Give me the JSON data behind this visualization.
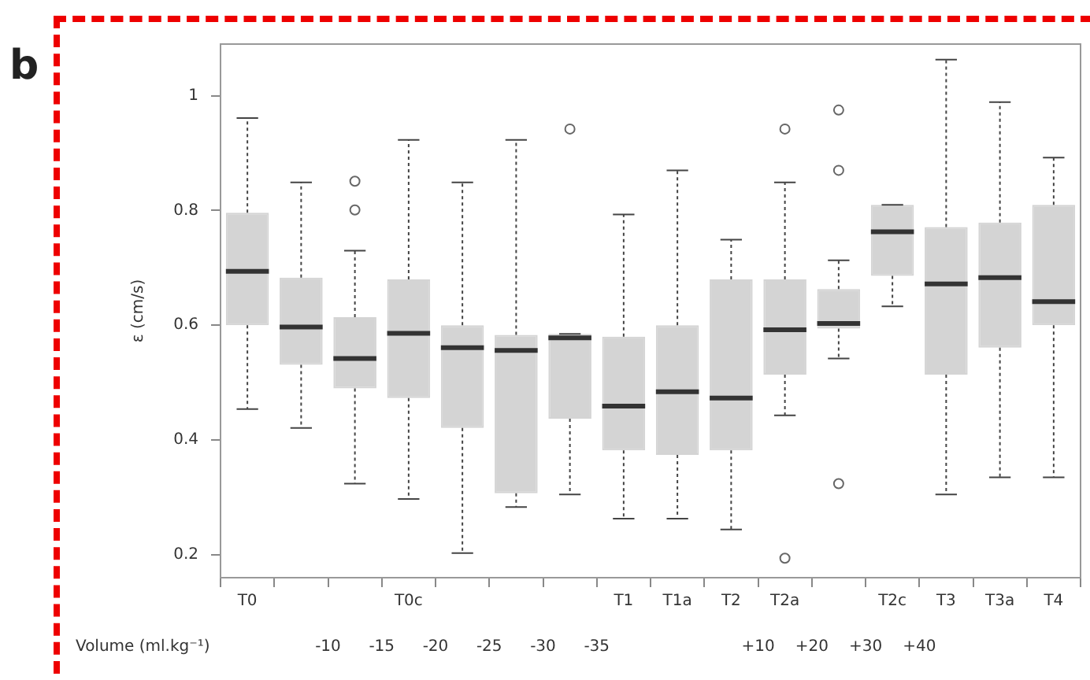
{
  "chart_data": {
    "type": "box",
    "ylabel": "ε (cm/s)",
    "color": "#d4d4d4",
    "categories": [
      "T0",
      null,
      null,
      "T0c",
      null,
      null,
      null,
      "T1",
      "T1a",
      "T2",
      "T2a",
      null,
      "T2c",
      "T3",
      "T3a",
      "T4"
    ],
    "ylim": [
      0.16,
      1.09
    ],
    "yticks": [
      0.2,
      0.4,
      0.6,
      0.8,
      1
    ],
    "grid": false,
    "legend": false,
    "annotations": [
      "b",
      "Volume (ml.kg⁻¹)",
      "-10",
      "-15",
      "-20",
      "-25",
      "-30",
      "-35",
      "+10",
      "+20",
      "+30",
      "+40"
    ],
    "boxes": [
      {
        "low": 0.454,
        "q1": 0.6,
        "median": 0.694,
        "q3": 0.796,
        "high": 0.961
      },
      {
        "low": 0.421,
        "q1": 0.531,
        "median": 0.597,
        "q3": 0.683,
        "high": 0.849
      },
      {
        "low": 0.324,
        "q1": 0.49,
        "median": 0.542,
        "q3": 0.614,
        "high": 0.73,
        "outliers": [
          0.801,
          0.851
        ]
      },
      {
        "low": 0.297,
        "q1": 0.473,
        "median": 0.586,
        "q3": 0.68,
        "high": 0.923
      },
      {
        "low": 0.203,
        "q1": 0.421,
        "median": 0.561,
        "q3": 0.6,
        "high": 0.849
      },
      {
        "low": 0.283,
        "q1": 0.307,
        "median": 0.556,
        "q3": 0.583,
        "high": 0.923
      },
      {
        "low": 0.305,
        "q1": 0.437,
        "median": 0.578,
        "q3": 0.585,
        "high": 0.585,
        "outliers": [
          0.942
        ]
      },
      {
        "low": 0.263,
        "q1": 0.382,
        "median": 0.459,
        "q3": 0.58,
        "high": 0.793
      },
      {
        "low": 0.263,
        "q1": 0.374,
        "median": 0.484,
        "q3": 0.6,
        "high": 0.87
      },
      {
        "low": 0.244,
        "q1": 0.382,
        "median": 0.473,
        "q3": 0.68,
        "high": 0.749
      },
      {
        "low": 0.443,
        "q1": 0.514,
        "median": 0.592,
        "q3": 0.68,
        "high": 0.849,
        "outliers": [
          0.942,
          0.194
        ]
      },
      {
        "low": 0.542,
        "q1": 0.594,
        "median": 0.603,
        "q3": 0.663,
        "high": 0.713,
        "outliers": [
          0.975,
          0.87,
          0.324
        ]
      },
      {
        "low": 0.633,
        "q1": 0.686,
        "median": 0.763,
        "q3": 0.81,
        "high": 0.81
      },
      {
        "low": 0.305,
        "q1": 0.514,
        "median": 0.672,
        "q3": 0.771,
        "high": 1.063
      },
      {
        "low": 0.335,
        "q1": 0.561,
        "median": 0.683,
        "q3": 0.779,
        "high": 0.989
      },
      {
        "low": 0.335,
        "q1": 0.6,
        "median": 0.641,
        "q3": 0.81,
        "high": 0.892
      }
    ]
  }
}
